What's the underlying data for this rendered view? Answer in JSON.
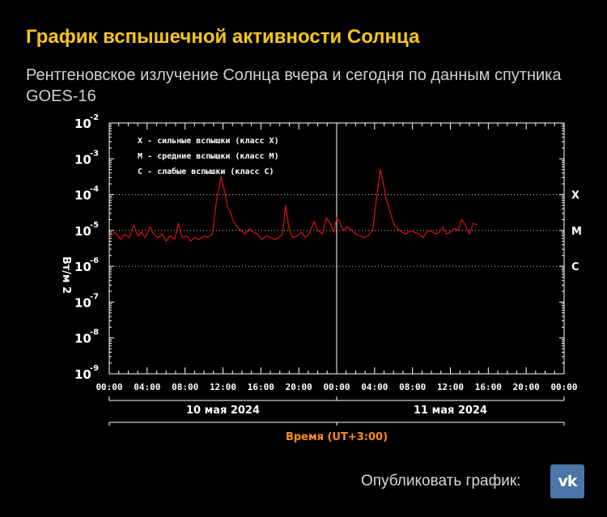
{
  "header": {
    "title": "График вспышечной активности Солнца",
    "subtitle": "Рентгеновское излучение Солнца вчера и сегодня по данным спутника GOES-16"
  },
  "footer": {
    "publish_label": "Опубликовать график:",
    "vk_label": "vk"
  },
  "colors": {
    "title": "#f5c518",
    "series": "#dd1111",
    "axis": "#ffffff",
    "time_label": "#ff8c1a",
    "vk": "#4a76a8"
  },
  "chart_data": {
    "type": "line",
    "title": "",
    "xlabel": "Время (UT+3:00)",
    "ylabel": "Вт/м 2",
    "y_scale": "log",
    "ylim_exp": [
      -9,
      -2
    ],
    "xlim_hours": [
      0,
      48
    ],
    "y_ticks": [
      {
        "base": "10",
        "exp": "-2"
      },
      {
        "base": "10",
        "exp": "-3"
      },
      {
        "base": "10",
        "exp": "-4"
      },
      {
        "base": "10",
        "exp": "-5"
      },
      {
        "base": "10",
        "exp": "-6"
      },
      {
        "base": "10",
        "exp": "-7"
      },
      {
        "base": "10",
        "exp": "-8"
      },
      {
        "base": "10",
        "exp": "-9"
      }
    ],
    "x_ticks": [
      "00:00",
      "04:00",
      "08:00",
      "12:00",
      "16:00",
      "20:00",
      "00:00",
      "04:00",
      "08:00",
      "12:00",
      "16:00",
      "20:00",
      "00:00"
    ],
    "days": [
      "10 мая 2024",
      "11 мая 2024"
    ],
    "class_levels": [
      {
        "label": "X",
        "exp": -4
      },
      {
        "label": "M",
        "exp": -5
      },
      {
        "label": "C",
        "exp": -6
      }
    ],
    "legend": [
      "X - сильные вспышки (класс X)",
      "M - средние вспышки (класс M)",
      "C - слабые вспышки (класс C)"
    ],
    "series": [
      {
        "name": "GOES-16 X-ray flux",
        "x": [
          0,
          0.6,
          1.2,
          1.6,
          2.1,
          2.6,
          3.0,
          3.4,
          3.8,
          4.3,
          4.7,
          5.2,
          5.6,
          6.0,
          6.4,
          6.9,
          7.3,
          7.7,
          8.2,
          8.6,
          9.0,
          9.5,
          10.0,
          10.4,
          10.9,
          11.3,
          11.8,
          12.2,
          12.5,
          12.8,
          13.1,
          13.5,
          13.9,
          14.3,
          14.8,
          15.2,
          15.6,
          16.1,
          16.6,
          17.0,
          17.5,
          17.9,
          18.3,
          18.6,
          19.0,
          19.4,
          19.8,
          20.3,
          20.7,
          21.1,
          21.6,
          22.0,
          22.5,
          22.9,
          23.3,
          23.7,
          24.0,
          24.3,
          24.7,
          25.1,
          25.6,
          26.0,
          26.5,
          26.9,
          27.3,
          27.8,
          28.2,
          28.6,
          28.9,
          29.2,
          29.6,
          30.0,
          30.4,
          30.9,
          31.3,
          31.8,
          32.2,
          32.7,
          33.1,
          33.5,
          33.9,
          34.4,
          34.8,
          35.2,
          35.6,
          36.0,
          36.4,
          36.8,
          37.2,
          37.6,
          38.0,
          38.4,
          38.8
        ],
        "exp": [
          -5.2,
          -5.05,
          -5.25,
          -5.1,
          -5.2,
          -4.85,
          -5.15,
          -5.05,
          -5.2,
          -4.9,
          -5.1,
          -5.2,
          -5.1,
          -5.3,
          -5.15,
          -5.25,
          -4.8,
          -5.2,
          -5.15,
          -5.3,
          -5.2,
          -5.25,
          -5.15,
          -5.2,
          -5.1,
          -4.2,
          -3.5,
          -3.95,
          -4.35,
          -4.5,
          -4.75,
          -4.9,
          -5.0,
          -5.1,
          -4.95,
          -5.05,
          -5.1,
          -5.25,
          -5.15,
          -5.2,
          -5.25,
          -5.2,
          -5.1,
          -4.3,
          -5.0,
          -5.2,
          -5.15,
          -5.05,
          -5.2,
          -5.1,
          -4.75,
          -5.0,
          -5.1,
          -4.65,
          -4.8,
          -5.05,
          -4.65,
          -4.75,
          -5.0,
          -4.9,
          -5.0,
          -5.1,
          -5.15,
          -5.2,
          -5.15,
          -5.0,
          -4.1,
          -3.3,
          -3.65,
          -4.1,
          -4.45,
          -4.8,
          -4.95,
          -5.05,
          -5.1,
          -5.0,
          -5.05,
          -5.1,
          -5.2,
          -5.05,
          -5.0,
          -5.1,
          -5.05,
          -4.9,
          -5.1,
          -5.05,
          -4.95,
          -5.0,
          -4.7,
          -4.85,
          -5.1,
          -4.8,
          -4.85
        ]
      }
    ]
  }
}
